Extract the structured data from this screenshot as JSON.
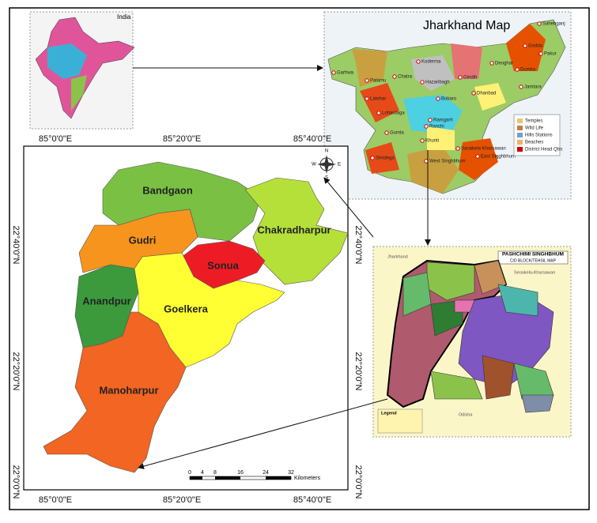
{
  "india_inset": {
    "label": "India"
  },
  "jharkhand_map": {
    "title": "Jharkhand Map",
    "districts": [
      "Sahebganj",
      "Godda",
      "Pakur",
      "Garhwa",
      "Palamu",
      "Chatra",
      "Koderma",
      "Giridih",
      "Deoghar",
      "Dumka",
      "Jamtara",
      "Hazaribagh",
      "Latehar",
      "Lohardaga",
      "Ramgarh",
      "Bokaro",
      "Dhanbad",
      "Ranchi",
      "Gumla",
      "Khunti",
      "Simdega",
      "Saraikela Kharsawan",
      "East Singhbhum",
      "West Singhbhum"
    ],
    "legend": [
      "Temples",
      "Wild Life",
      "Hills Stations",
      "Beaches",
      "District Head Qtrs"
    ]
  },
  "main_map": {
    "blocks": [
      "Bandgaon",
      "Gudri",
      "Chakradharpur",
      "Sonua",
      "Anandpur",
      "Goelkera",
      "Manoharpur"
    ],
    "x_labels": [
      "85°0'0\"E",
      "85°20'0\"E",
      "85°40'0\"E"
    ],
    "y_labels": [
      "22°40'0\"N",
      "22°20'0\"N",
      "22°0'0\"N"
    ],
    "compass": [
      "N",
      "E",
      "S",
      "W"
    ],
    "scale_ticks": [
      0,
      4,
      8,
      16,
      24,
      32
    ],
    "scale_unit": "Kilometers"
  },
  "block_map": {
    "title": "PASHCHIMI SINGHBHUM",
    "subtitle": "C/D BLOCK/TEHSIL MAP",
    "neighbors": [
      "Seraikela-Kharsawan",
      "Odisha",
      "Jharkhand"
    ],
    "legend": "Legend"
  }
}
